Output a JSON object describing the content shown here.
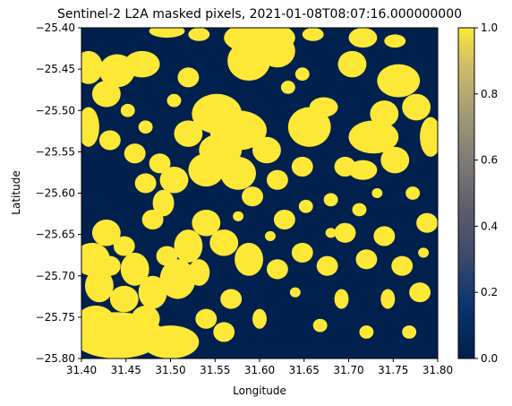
{
  "chart_data": {
    "type": "heatmap",
    "title": "Sentinel-2 L2A masked pixels, 2021-01-08T08:07:16.000000000",
    "xlabel": "Longitude",
    "ylabel": "Latitude",
    "xlim": [
      31.4,
      31.8
    ],
    "ylim": [
      -25.8,
      -25.4
    ],
    "x_ticks": [
      "31.40",
      "31.45",
      "31.50",
      "31.55",
      "31.60",
      "31.65",
      "31.70",
      "31.75",
      "31.80"
    ],
    "x_tick_values": [
      31.4,
      31.45,
      31.5,
      31.55,
      31.6,
      31.65,
      31.7,
      31.75,
      31.8
    ],
    "y_ticks": [
      "−25.40",
      "−25.45",
      "−25.50",
      "−25.55",
      "−25.60",
      "−25.65",
      "−25.70",
      "−25.75",
      "−25.80"
    ],
    "y_tick_values": [
      -25.4,
      -25.45,
      -25.5,
      -25.55,
      -25.6,
      -25.65,
      -25.7,
      -25.75,
      -25.8
    ],
    "colorbar": {
      "colormap": "cividis",
      "range": [
        0.0,
        1.0
      ],
      "ticks": [
        "0.0",
        "0.2",
        "0.4",
        "0.6",
        "0.8",
        "1.0"
      ],
      "tick_values": [
        0.0,
        0.2,
        0.4,
        0.6,
        0.8,
        1.0
      ],
      "low_color": "#00204d",
      "high_color": "#fde838"
    },
    "mask_values": [
      0,
      1
    ],
    "grid": false
  }
}
